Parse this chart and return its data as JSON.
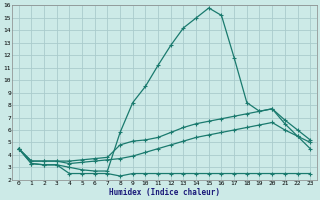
{
  "xlabel": "Humidex (Indice chaleur)",
  "background_color": "#cceae7",
  "grid_color": "#aacccc",
  "line_color": "#1a7a6e",
  "xlim": [
    -0.5,
    23.5
  ],
  "ylim": [
    2,
    16
  ],
  "xticks": [
    0,
    1,
    2,
    3,
    4,
    5,
    6,
    7,
    8,
    9,
    10,
    11,
    12,
    13,
    14,
    15,
    16,
    17,
    18,
    19,
    20,
    21,
    22,
    23
  ],
  "yticks": [
    2,
    3,
    4,
    5,
    6,
    7,
    8,
    9,
    10,
    11,
    12,
    13,
    14,
    15,
    16
  ],
  "line1_x": [
    0,
    1,
    2,
    3,
    4,
    5,
    6,
    7,
    8,
    9,
    10,
    11,
    12,
    13,
    14,
    15,
    16,
    17,
    18,
    19,
    20,
    21,
    22,
    23
  ],
  "line1_y": [
    4.5,
    3.3,
    3.2,
    3.2,
    2.5,
    2.5,
    2.5,
    2.5,
    2.3,
    2.5,
    2.5,
    2.5,
    2.5,
    2.5,
    2.5,
    2.5,
    2.5,
    2.5,
    2.5,
    2.5,
    2.5,
    2.5,
    2.5,
    2.5
  ],
  "line2_x": [
    0,
    1,
    2,
    3,
    4,
    5,
    6,
    7,
    8,
    9,
    10,
    11,
    12,
    13,
    14,
    15,
    16,
    17,
    18,
    19,
    20,
    21,
    22,
    23
  ],
  "line2_y": [
    4.5,
    3.5,
    3.5,
    3.5,
    3.5,
    3.6,
    3.7,
    3.8,
    4.8,
    5.1,
    5.2,
    5.4,
    5.8,
    6.2,
    6.5,
    6.7,
    6.9,
    7.1,
    7.3,
    7.5,
    7.7,
    6.8,
    6.0,
    5.2
  ],
  "line3_x": [
    0,
    1,
    2,
    3,
    4,
    5,
    6,
    7,
    8,
    9,
    10,
    11,
    12,
    13,
    14,
    15,
    16,
    17,
    18,
    19,
    20,
    21,
    22,
    23
  ],
  "line3_y": [
    4.5,
    3.5,
    3.5,
    3.5,
    3.3,
    3.4,
    3.5,
    3.6,
    3.7,
    3.9,
    4.2,
    4.5,
    4.8,
    5.1,
    5.4,
    5.6,
    5.8,
    6.0,
    6.2,
    6.4,
    6.6,
    6.0,
    5.5,
    5.0
  ],
  "line4_x": [
    0,
    1,
    2,
    3,
    4,
    5,
    6,
    7,
    8,
    9,
    10,
    11,
    12,
    13,
    14,
    15,
    16,
    17,
    18,
    19,
    20,
    21,
    22,
    23
  ],
  "line4_y": [
    4.5,
    3.3,
    3.2,
    3.2,
    3.0,
    2.8,
    2.7,
    2.7,
    5.8,
    8.2,
    9.5,
    11.2,
    12.8,
    14.2,
    15.0,
    15.8,
    15.2,
    11.8,
    8.2,
    7.5,
    7.7,
    6.5,
    5.5,
    4.5
  ]
}
